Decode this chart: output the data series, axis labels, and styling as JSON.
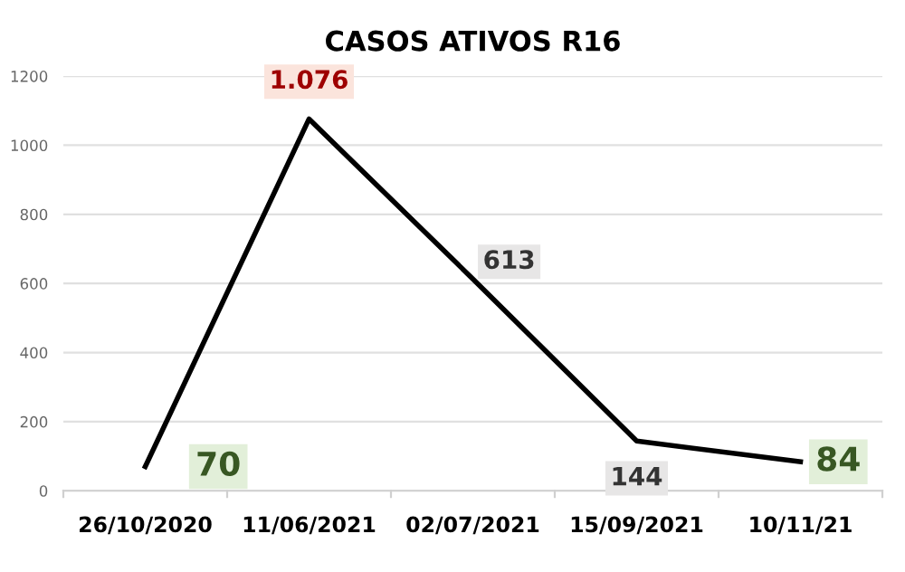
{
  "chart_data": {
    "type": "line",
    "title": "CASOS ATIVOS R16",
    "categories": [
      "26/10/2020",
      "11/06/2021",
      "02/07/2021",
      "15/09/2021",
      "10/11/21"
    ],
    "series": [
      {
        "color": "#000000",
        "values": [
          70,
          1076,
          613,
          144,
          84
        ]
      }
    ],
    "value_labels": [
      "70",
      "1.076",
      "613",
      "144",
      "84"
    ],
    "ylim": [
      0,
      1200
    ],
    "yticks": [
      0,
      200,
      400,
      600,
      800,
      1000,
      1200
    ],
    "grid": "y",
    "marker": "none",
    "line_style": "solid"
  }
}
